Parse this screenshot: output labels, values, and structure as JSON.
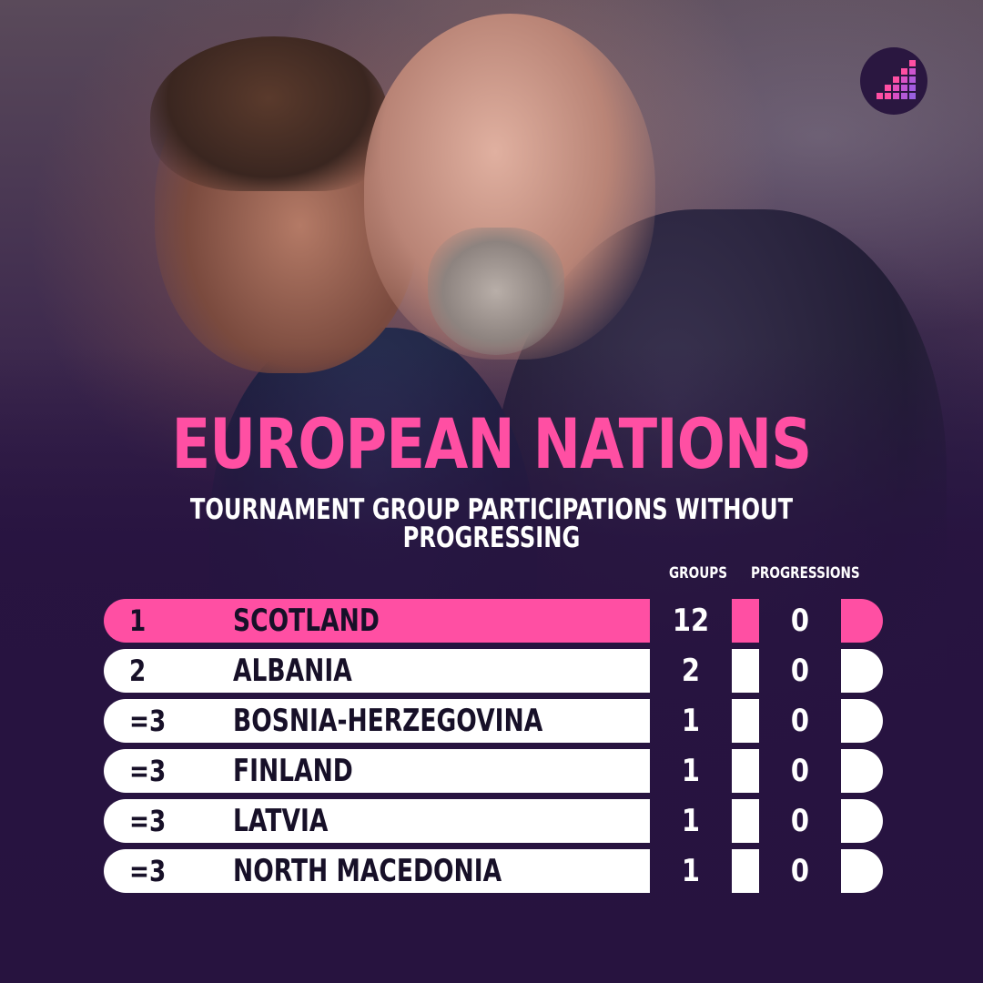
{
  "title": "EUROPEAN NATIONS",
  "subtitle": "TOURNAMENT GROUP PARTICIPATIONS WITHOUT PROGRESSING",
  "columns": {
    "groups": "GROUPS",
    "progressions": "PROGRESSIONS"
  },
  "colors": {
    "accent": "#ff4fa3",
    "background": "#27133f",
    "row": "#ffffff",
    "text_dark": "#171028"
  },
  "logo": {
    "icon": "bar-steps-logo-icon"
  },
  "rows": [
    {
      "rank": "1",
      "nation": "SCOTLAND",
      "groups": "12",
      "progressions": "0",
      "highlight": true
    },
    {
      "rank": "2",
      "nation": "ALBANIA",
      "groups": "2",
      "progressions": "0",
      "highlight": false
    },
    {
      "rank": "=3",
      "nation": "BOSNIA-HERZEGOVINA",
      "groups": "1",
      "progressions": "0",
      "highlight": false
    },
    {
      "rank": "=3",
      "nation": "FINLAND",
      "groups": "1",
      "progressions": "0",
      "highlight": false
    },
    {
      "rank": "=3",
      "nation": "LATVIA",
      "groups": "1",
      "progressions": "0",
      "highlight": false
    },
    {
      "rank": "=3",
      "nation": "NORTH MACEDONIA",
      "groups": "1",
      "progressions": "0",
      "highlight": false
    }
  ]
}
